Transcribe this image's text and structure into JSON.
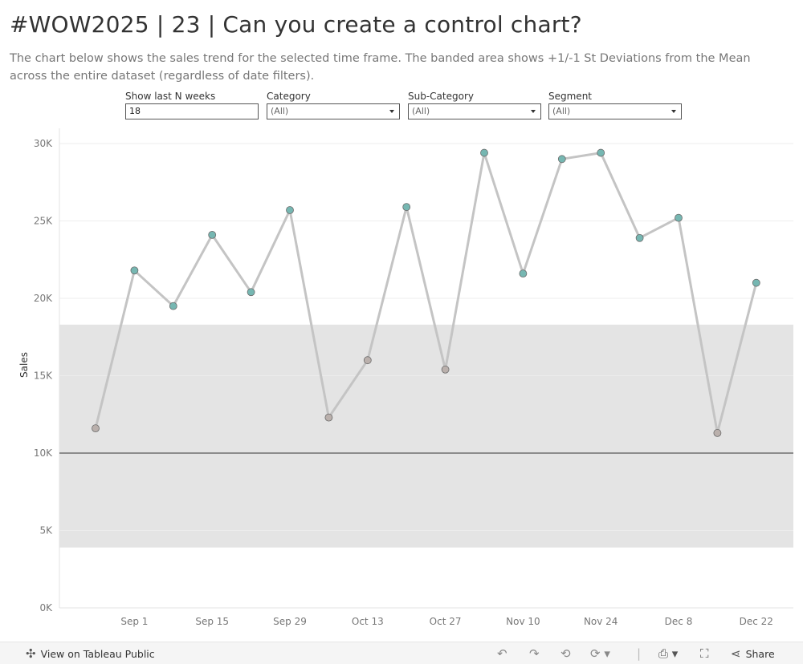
{
  "header": {
    "title": "#WOW2025 | 23 | Can you create a control chart?",
    "subtitle": "The chart below shows the sales trend for the selected time frame. The banded area shows +1/-1 St Deviations from the Mean across the entire dataset (regardless of date filters)."
  },
  "filters": {
    "weeks": {
      "label": "Show last N weeks",
      "value": "18"
    },
    "category": {
      "label": "Category",
      "value": "(All)"
    },
    "subcategory": {
      "label": "Sub-Category",
      "value": "(All)"
    },
    "segment": {
      "label": "Segment",
      "value": "(All)"
    }
  },
  "chart_data": {
    "type": "line",
    "ylabel": "Sales",
    "xlabel": "",
    "ylim": [
      0,
      30000
    ],
    "yticks": [
      0,
      5000,
      10000,
      15000,
      20000,
      25000,
      30000
    ],
    "ytick_labels": [
      "0K",
      "5K",
      "10K",
      "15K",
      "20K",
      "25K",
      "30K"
    ],
    "x": [
      "2024-08-25",
      "2024-09-01",
      "2024-09-08",
      "2024-09-15",
      "2024-09-22",
      "2024-09-29",
      "2024-10-06",
      "2024-10-13",
      "2024-10-20",
      "2024-10-27",
      "2024-11-03",
      "2024-11-10",
      "2024-11-17",
      "2024-11-24",
      "2024-12-01",
      "2024-12-08",
      "2024-12-15",
      "2024-12-22"
    ],
    "xtick_labels": [
      "",
      "Sep 1",
      "",
      "Sep 15",
      "",
      "Sep 29",
      "",
      "Oct 13",
      "",
      "Oct 27",
      "",
      "Nov 10",
      "",
      "Nov 24",
      "",
      "Dec 8",
      "",
      "Dec 22"
    ],
    "series": [
      {
        "values": [
          11600,
          21800,
          19500,
          24100,
          20400,
          25700,
          12300,
          16000,
          25900,
          15400,
          29400,
          21600,
          29000,
          29400,
          23900,
          25200,
          11300,
          21000
        ]
      }
    ],
    "mean": 10000,
    "band": [
      3900,
      18300
    ],
    "above_band": [
      false,
      true,
      true,
      true,
      true,
      true,
      false,
      false,
      true,
      false,
      true,
      true,
      true,
      true,
      true,
      true,
      false,
      true
    ],
    "grid": true,
    "legend": "none",
    "colors": {
      "line": "#c4c4c4",
      "above": "#76b7b2",
      "within": "#bab0ac",
      "marker_stroke": "#6b6b6b",
      "band": "#e4e4e4",
      "mean_line": "#6e6e6e",
      "grid": "#eeeeee"
    }
  },
  "toolbar": {
    "view_public_label": "View on Tableau Public",
    "share_label": "Share",
    "icons": [
      "tableau-logo-icon",
      "undo-icon",
      "redo-icon",
      "revert-icon",
      "refresh-icon",
      "download-icon",
      "fullscreen-icon",
      "share-icon"
    ]
  }
}
